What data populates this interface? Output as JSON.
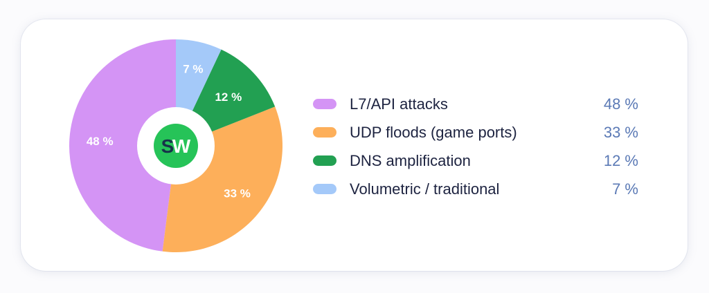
{
  "logo": {
    "text_s": "S",
    "text_w": "W"
  },
  "chart_data": {
    "type": "pie",
    "categories": [
      "L7/API attacks",
      "UDP floods (game ports)",
      "DNS amplification",
      "Volumetric / traditional"
    ],
    "values": [
      48,
      33,
      12,
      7
    ],
    "data_labels": [
      "48 %",
      "33 %",
      "12 %",
      "7 %"
    ],
    "colors": [
      "#d494f5",
      "#fdaf5a",
      "#22a052",
      "#a4c9f9"
    ],
    "legend_placement": "right",
    "start": "top",
    "direction": "counterclockwise"
  },
  "legend": {
    "items": [
      {
        "label": "L7/API attacks",
        "value": "48 %",
        "color": "#d494f5"
      },
      {
        "label": "UDP floods (game ports)",
        "value": "33 %",
        "color": "#fdaf5a"
      },
      {
        "label": "DNS amplification",
        "value": "12 %",
        "color": "#22a052"
      },
      {
        "label": "Volumetric / traditional",
        "value": "7 %",
        "color": "#a4c9f9"
      }
    ]
  },
  "colors": {
    "logo_green": "#26c358",
    "logo_dark": "#17324a",
    "label_text": "#ffffff",
    "legend_text": "#1d2340",
    "legend_value": "#5a79b5"
  }
}
